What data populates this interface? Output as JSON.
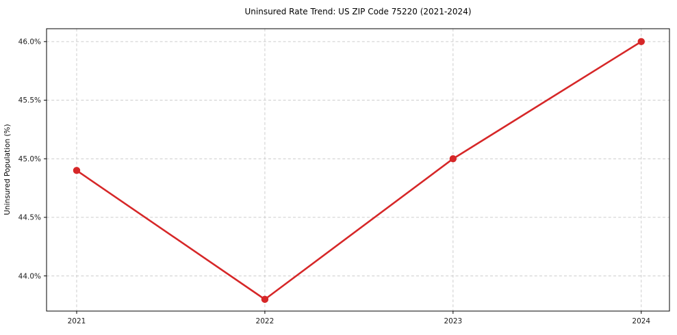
{
  "chart_data": {
    "type": "line",
    "title": "Uninsured Rate Trend: US ZIP Code 75220 (2021-2024)",
    "xlabel": "",
    "ylabel": "Uninsured Population (%)",
    "x": [
      2021,
      2022,
      2023,
      2024
    ],
    "values": [
      44.9,
      43.8,
      45.0,
      46.0
    ],
    "x_tick_labels": [
      "2021",
      "2022",
      "2023",
      "2024"
    ],
    "y_tick_labels": [
      "44.0%",
      "44.5%",
      "45.0%",
      "45.5%",
      "46.0%"
    ],
    "y_tick_values": [
      44.0,
      44.5,
      45.0,
      45.5,
      46.0
    ],
    "xlim": [
      2020.84,
      2024.15
    ],
    "ylim": [
      43.7,
      46.11
    ],
    "grid": true,
    "legend_position": "none",
    "line_color": "#d62728",
    "marker_color": "#d62728",
    "marker_shape": "circle",
    "grid_color": "#cccccc",
    "frame_color": "#000000",
    "background_color": "#ffffff"
  }
}
